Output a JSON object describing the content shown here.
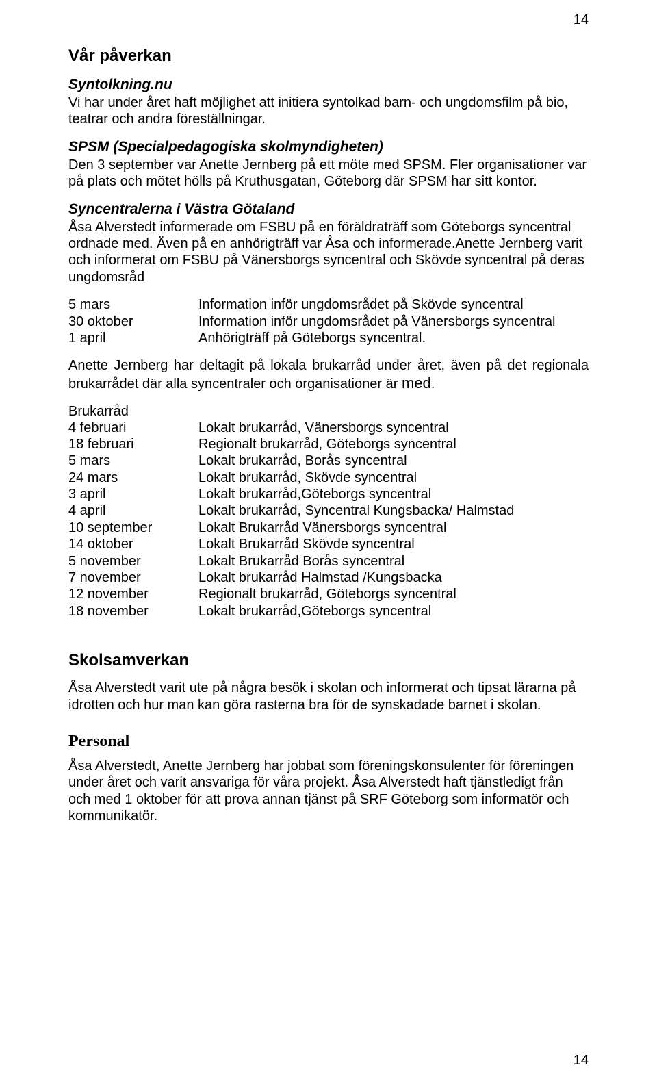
{
  "page_number_top": "14",
  "page_number_bottom": "14",
  "heading_main": "Vår påverkan",
  "s1": {
    "title": "Syntolkning.nu",
    "body": "Vi har under året haft möjlighet att initiera syntolkad barn- och ungdomsfilm på bio, teatrar och andra föreställningar."
  },
  "s2": {
    "title": "SPSM (Specialpedagogiska skolmyndigheten)",
    "body": "Den 3 september var Anette Jernberg på ett möte med SPSM. Fler organisationer var på plats och mötet hölls på Kruthusgatan, Göteborg där SPSM har sitt kontor."
  },
  "s3": {
    "title": "Syncentralerna i Västra Götaland",
    "body": "Åsa Alverstedt informerade om FSBU på en föräldraträff som Göteborgs syncentral ordnade med. Även på en anhörigträff var Åsa och informerade.Anette Jernberg varit och informerat om FSBU på Vänersborgs syncentral och Skövde syncentral på deras ungdomsråd"
  },
  "events1": [
    {
      "date": "5 mars",
      "desc": "Information inför ungdomsrådet på Skövde  syncentral"
    },
    {
      "date": "30 oktober",
      "desc": "Information inför ungdomsrådet på Vänersborgs syncentral"
    },
    {
      "date": "1 april",
      "desc": "Anhörigträff på Göteborgs syncentral."
    }
  ],
  "para_after_events1": "Anette Jernberg har deltagit på lokala brukarråd under året, även på det regionala brukarrådet där alla syncentraler och organisationer är ",
  "para_after_events1_tail": "med",
  "para_after_events1_period": ".",
  "brukarrad_label": "Brukarråd",
  "brukarrad": [
    {
      "date": "4 februari",
      "desc": "Lokalt brukarråd, Vänersborgs syncentral"
    },
    {
      "date": "18 februari",
      "desc": "Regionalt brukarråd, Göteborgs syncentral"
    },
    {
      "date": "5 mars",
      "desc": "Lokalt brukarråd, Borås syncentral"
    },
    {
      "date": "24 mars",
      "desc": "Lokalt brukarråd, Skövde syncentral"
    },
    {
      "date": "3 april",
      "desc": " Lokalt brukarråd,Göteborgs syncentral"
    },
    {
      "date": "4 april",
      "desc": "Lokalt brukarråd, Syncentral Kungsbacka/ Halmstad"
    },
    {
      "date": "10 september",
      "desc": "Lokalt Brukarråd Vänersborgs syncentral"
    },
    {
      "date": "14 oktober",
      "desc": " Lokalt Brukarråd Skövde syncentral"
    },
    {
      "date": "5 november",
      "desc": " Lokalt Brukarråd Borås syncentral"
    },
    {
      "date": "7 november",
      "desc": "Lokalt brukarråd Halmstad /Kungsbacka"
    },
    {
      "date": "12 november",
      "desc": "Regionalt brukarråd, Göteborgs syncentral"
    },
    {
      "date": "18 november",
      "desc": "Lokalt brukarråd,Göteborgs syncentral"
    }
  ],
  "skolsamverkan": {
    "title": "Skolsamverkan",
    "body": "Åsa Alverstedt varit ute på några besök i skolan och informerat och tipsat lärarna på idrotten och hur man kan göra rasterna bra för de synskadade barnet i skolan."
  },
  "personal": {
    "title": "Personal",
    "body": "Åsa Alverstedt, Anette Jernberg har jobbat som föreningskonsulenter för föreningen under året och varit ansvariga för våra projekt. Åsa Alverstedt haft tjänstledigt från och med 1 oktober för att prova annan tjänst på SRF Göteborg som informatör och kommunikatör."
  }
}
